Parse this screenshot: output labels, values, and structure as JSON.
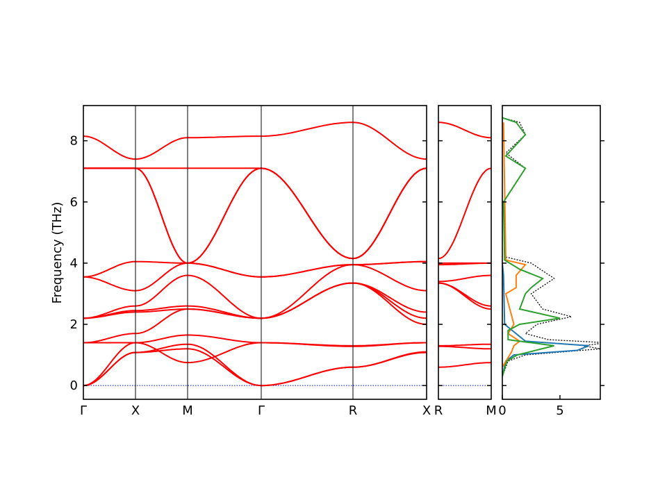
{
  "chart_data": {
    "type": "line",
    "ylabel": "Frequency (THz)",
    "ylim": [
      -0.45,
      9.15
    ],
    "yticks": [
      0,
      2,
      4,
      6,
      8
    ],
    "band_color": "#ff0000",
    "zero_line_color": "#0000ff",
    "panels": [
      {
        "name": "band-path-main",
        "xlabels": [
          "Γ",
          "X",
          "M",
          "Γ",
          "R",
          "X"
        ],
        "segment_points": [
          "Γ",
          "X",
          "M",
          "Γ",
          "R",
          "X"
        ],
        "bands": [
          [
            [
              0,
              0
            ],
            [
              1,
              1.08
            ],
            [
              2,
              1.2
            ],
            [
              3,
              0
            ],
            [
              4,
              0.6
            ],
            [
              5,
              1.08
            ]
          ],
          [
            [
              0,
              0
            ],
            [
              1,
              1.08
            ],
            [
              2,
              1.35
            ],
            [
              3,
              0
            ],
            [
              4,
              0.6
            ],
            [
              5,
              1.1
            ]
          ],
          [
            [
              0,
              0
            ],
            [
              1,
              1.4
            ],
            [
              2,
              0.75
            ],
            [
              3,
              1.4
            ],
            [
              4,
              1.28
            ],
            [
              5,
              1.4
            ]
          ],
          [
            [
              0,
              1.4
            ],
            [
              1,
              1.4
            ],
            [
              2,
              1.65
            ],
            [
              3,
              1.4
            ],
            [
              4,
              1.3
            ],
            [
              5,
              1.4
            ]
          ],
          [
            [
              0,
              1.4
            ],
            [
              1,
              1.7
            ],
            [
              2,
              2.5
            ],
            [
              3,
              2.2
            ],
            [
              4,
              3.35
            ],
            [
              5,
              2.4
            ]
          ],
          [
            [
              0,
              2.2
            ],
            [
              1,
              2.4
            ],
            [
              2,
              2.5
            ],
            [
              3,
              2.2
            ],
            [
              4,
              3.35
            ],
            [
              5,
              2.2
            ]
          ],
          [
            [
              0,
              2.2
            ],
            [
              1,
              2.45
            ],
            [
              2,
              2.6
            ],
            [
              3,
              2.2
            ],
            [
              4,
              3.35
            ],
            [
              5,
              2.0
            ]
          ],
          [
            [
              0,
              2.2
            ],
            [
              1,
              2.6
            ],
            [
              2,
              3.6
            ],
            [
              3,
              2.2
            ],
            [
              4,
              3.95
            ],
            [
              5,
              3.1
            ]
          ],
          [
            [
              0,
              3.55
            ],
            [
              1,
              3.1
            ],
            [
              2,
              4.0
            ],
            [
              3,
              3.55
            ],
            [
              4,
              3.95
            ],
            [
              5,
              4.05
            ]
          ],
          [
            [
              0,
              3.55
            ],
            [
              1,
              4.05
            ],
            [
              2,
              4.0
            ],
            [
              3,
              3.55
            ],
            [
              4,
              3.95
            ],
            [
              5,
              4.05
            ]
          ],
          [
            [
              0,
              7.1
            ],
            [
              1,
              7.1
            ],
            [
              2,
              4.0
            ],
            [
              3,
              7.1
            ],
            [
              4,
              4.15
            ],
            [
              5,
              7.1
            ]
          ],
          [
            [
              0,
              7.1
            ],
            [
              1,
              7.1
            ],
            [
              2,
              4.0
            ],
            [
              3,
              7.1
            ],
            [
              4,
              4.15
            ],
            [
              5,
              7.1
            ]
          ],
          [
            [
              0,
              7.1
            ],
            [
              1,
              7.1
            ],
            [
              2,
              7.1
            ],
            [
              3,
              7.1
            ],
            [
              4,
              4.15
            ],
            [
              5,
              7.1
            ]
          ],
          [
            [
              0,
              8.15
            ],
            [
              1,
              7.4
            ],
            [
              2,
              8.1
            ],
            [
              3,
              8.15
            ],
            [
              4,
              8.6
            ],
            [
              5,
              7.4
            ]
          ]
        ]
      },
      {
        "name": "band-path-rm",
        "xlabels": [
          "R",
          "M"
        ],
        "segment_points": [
          "R",
          "M"
        ],
        "bands": [
          [
            [
              0,
              0.6
            ],
            [
              1,
              0.75
            ]
          ],
          [
            [
              0,
              1.28
            ],
            [
              1,
              1.2
            ]
          ],
          [
            [
              0,
              1.3
            ],
            [
              1,
              1.35
            ]
          ],
          [
            [
              0,
              3.35
            ],
            [
              1,
              2.5
            ]
          ],
          [
            [
              0,
              3.35
            ],
            [
              1,
              2.6
            ]
          ],
          [
            [
              0,
              3.4
            ],
            [
              1,
              3.6
            ]
          ],
          [
            [
              0,
              3.95
            ],
            [
              1,
              4.0
            ]
          ],
          [
            [
              0,
              4.0
            ],
            [
              1,
              4.0
            ]
          ],
          [
            [
              0,
              4.15
            ],
            [
              1,
              7.1
            ]
          ],
          [
            [
              0,
              8.6
            ],
            [
              1,
              8.1
            ]
          ]
        ]
      }
    ],
    "dos_panel": {
      "xlim": [
        0,
        8.5
      ],
      "xticks": [
        0,
        5
      ],
      "series": [
        {
          "color": "#000000",
          "style": "dotted",
          "points": [
            [
              0,
              0.3
            ],
            [
              0.5,
              0.8
            ],
            [
              2,
              1.0
            ],
            [
              8.5,
              1.2
            ],
            [
              7,
              1.3
            ],
            [
              9,
              1.4
            ],
            [
              4,
              1.5
            ],
            [
              2,
              1.7
            ],
            [
              3,
              2.0
            ],
            [
              6,
              2.25
            ],
            [
              3.5,
              2.5
            ],
            [
              2.5,
              3.0
            ],
            [
              4.5,
              3.5
            ],
            [
              2.5,
              4.0
            ],
            [
              0.3,
              4.2
            ],
            [
              0.1,
              6.0
            ],
            [
              2,
              7.1
            ],
            [
              0.3,
              7.6
            ],
            [
              2,
              8.2
            ],
            [
              1.5,
              8.6
            ],
            [
              0,
              8.75
            ]
          ]
        },
        {
          "color": "#1f77b4",
          "style": "solid",
          "points": [
            [
              0,
              0.3
            ],
            [
              0.3,
              0.8
            ],
            [
              1,
              1.0
            ],
            [
              6.5,
              1.15
            ],
            [
              7.5,
              1.3
            ],
            [
              2,
              1.45
            ],
            [
              0.2,
              2.0
            ],
            [
              0.1,
              3.6
            ],
            [
              0,
              4.0
            ]
          ]
        },
        {
          "color": "#ff7f0e",
          "style": "solid",
          "points": [
            [
              0,
              0.6
            ],
            [
              0.8,
              1.1
            ],
            [
              1,
              1.3
            ],
            [
              1.5,
              1.45
            ],
            [
              0.5,
              1.7
            ],
            [
              1,
              2.0
            ],
            [
              0.3,
              3.0
            ],
            [
              1.2,
              3.2
            ],
            [
              1.2,
              3.6
            ],
            [
              2,
              3.95
            ],
            [
              0.3,
              4.1
            ],
            [
              0.1,
              8.6
            ]
          ]
        },
        {
          "color": "#2ca02c",
          "style": "solid",
          "points": [
            [
              0,
              0.3
            ],
            [
              0.4,
              0.8
            ],
            [
              1.3,
              1.0
            ],
            [
              4.5,
              1.3
            ],
            [
              0.5,
              1.5
            ],
            [
              0.5,
              1.8
            ],
            [
              1.5,
              2.0
            ],
            [
              5,
              2.2
            ],
            [
              1.5,
              2.5
            ],
            [
              2,
              3.0
            ],
            [
              2.5,
              3.2
            ],
            [
              3.5,
              3.5
            ],
            [
              1.5,
              3.8
            ],
            [
              0.2,
              4.1
            ],
            [
              0.1,
              6.0
            ],
            [
              2,
              7.1
            ],
            [
              0.3,
              7.5
            ],
            [
              2,
              8.2
            ],
            [
              1.2,
              8.6
            ],
            [
              0,
              8.75
            ]
          ]
        }
      ]
    }
  }
}
